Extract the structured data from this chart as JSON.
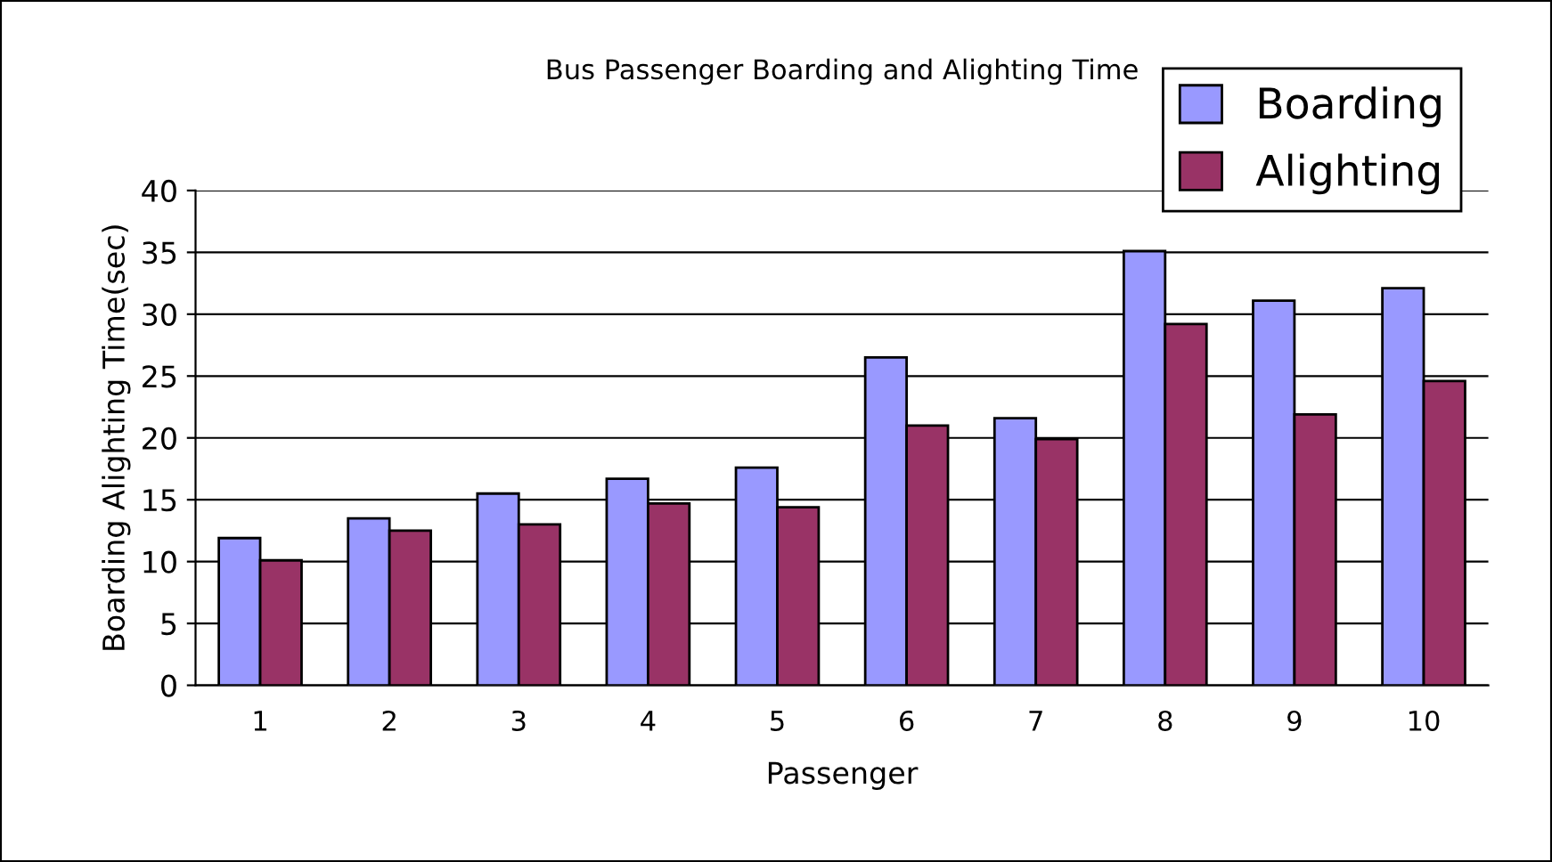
{
  "chart_data": {
    "type": "bar",
    "title": "Bus Passenger Boarding and Alighting Time",
    "xlabel": "Passenger",
    "ylabel": "Boarding Alighting Time(sec)",
    "categories": [
      "1",
      "2",
      "3",
      "4",
      "5",
      "6",
      "7",
      "8",
      "9",
      "10"
    ],
    "series": [
      {
        "name": "Boarding",
        "color": "#9999ff",
        "values": [
          11.9,
          13.5,
          15.5,
          16.7,
          17.6,
          26.5,
          21.6,
          35.1,
          31.1,
          32.1
        ]
      },
      {
        "name": "Alighting",
        "color": "#993366",
        "values": [
          10.1,
          12.5,
          13,
          14.7,
          14.4,
          21,
          19.9,
          29.2,
          21.9,
          24.6
        ]
      }
    ],
    "ylim": [
      0,
      40
    ],
    "yticks": [
      0,
      5,
      10,
      15,
      20,
      25,
      30,
      35,
      40
    ],
    "grid": "y",
    "legend": "top right"
  }
}
